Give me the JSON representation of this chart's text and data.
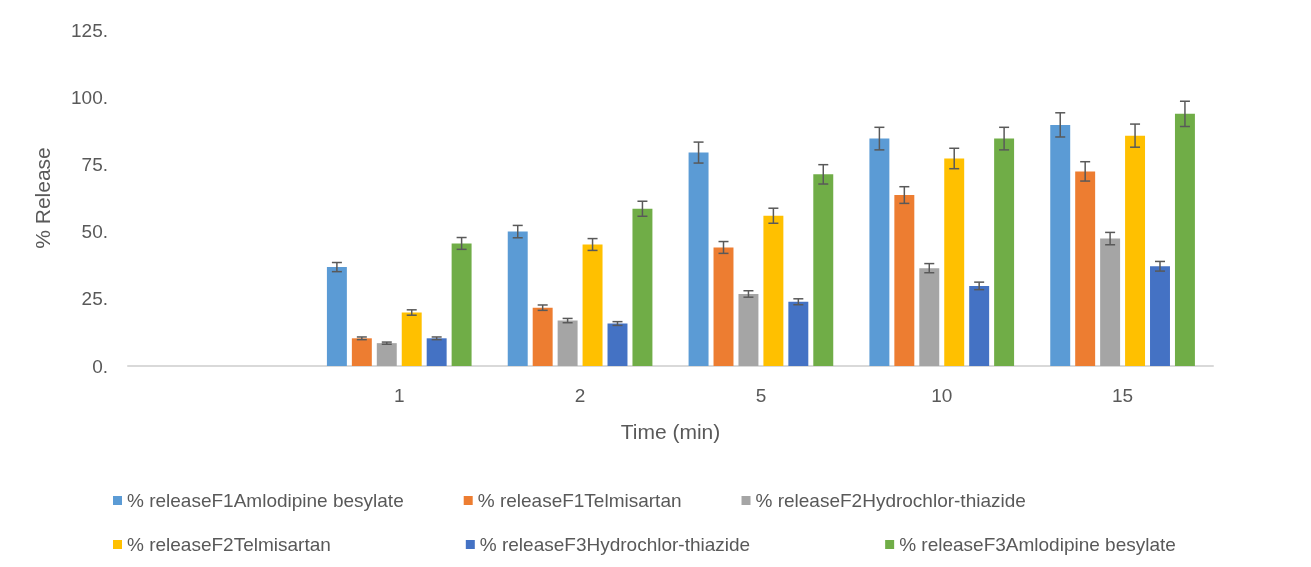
{
  "chart_data": {
    "type": "bar",
    "xlabel": "Time (min)",
    "ylabel": "% Release",
    "categories": [
      null,
      "1",
      "2",
      "5",
      "10",
      "15"
    ],
    "series": [
      {
        "name": "% releaseF1Amlodipine besylate",
        "color": "#5b9bd5",
        "values": [
          null,
          36.8,
          50,
          79.4,
          84.6,
          89.7
        ],
        "errors": [
          null,
          1.7,
          2.3,
          3.9,
          4.2,
          4.5
        ]
      },
      {
        "name": "% releaseF1Telmisartan",
        "color": "#ed7d31",
        "values": [
          null,
          10.3,
          21.7,
          44.1,
          63.6,
          72.4
        ],
        "errors": [
          null,
          0.5,
          1,
          2.2,
          3.1,
          3.6
        ]
      },
      {
        "name": "% releaseF2Hydrochlor-thiazide",
        "color": "#a5a5a5",
        "values": [
          null,
          8.5,
          16.9,
          26.8,
          36.4,
          47.4
        ],
        "errors": [
          null,
          0.4,
          0.8,
          1.2,
          1.7,
          2.3
        ]
      },
      {
        "name": "% releaseF2Telmisartan",
        "color": "#ffc000",
        "values": [
          null,
          19.9,
          45.2,
          55.9,
          77.2,
          85.7
        ],
        "errors": [
          null,
          1,
          2.2,
          2.8,
          3.8,
          4.3
        ]
      },
      {
        "name": "% releaseF3Hydrochlor-thiazide",
        "color": "#4472c4",
        "values": [
          null,
          10.3,
          15.8,
          23.9,
          29.8,
          37.1
        ],
        "errors": [
          null,
          0.5,
          0.7,
          1.1,
          1.4,
          1.8
        ]
      },
      {
        "name": "% releaseF3Amlodipine besylate",
        "color": "#70ad47",
        "values": [
          null,
          45.6,
          58.5,
          71.3,
          84.6,
          93.8
        ],
        "errors": [
          null,
          2.2,
          2.8,
          3.6,
          4.2,
          4.7
        ]
      }
    ],
    "ylim": [
      0,
      125
    ],
    "yticks": [
      {
        "value": 0,
        "label": "0."
      },
      {
        "value": 25,
        "label": "25."
      },
      {
        "value": 50,
        "label": "50."
      },
      {
        "value": 75,
        "label": "75."
      },
      {
        "value": 100,
        "label": "100."
      },
      {
        "value": 125,
        "label": "125."
      }
    ],
    "grid": false,
    "legend": "bottom"
  }
}
